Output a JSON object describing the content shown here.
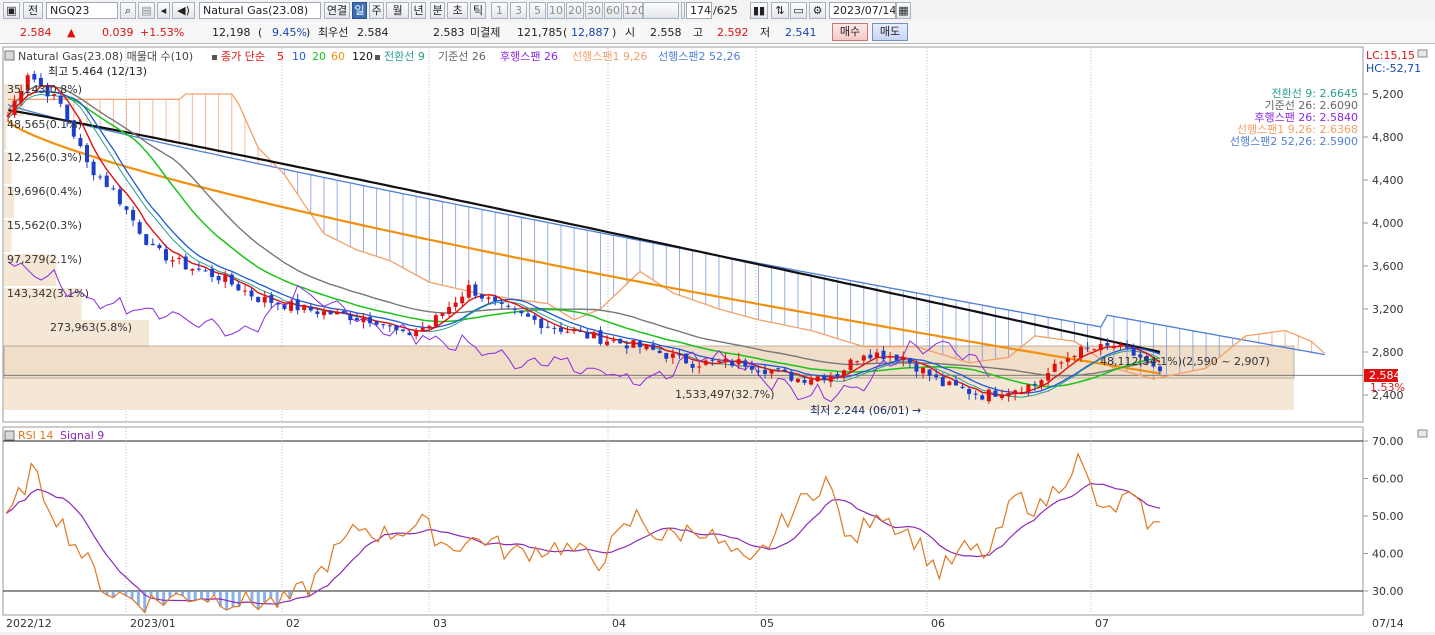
{
  "toolbar": {
    "code_label": "전",
    "code_value": "NGQ23",
    "name": "Natural Gas(23.08)",
    "link_label": "연결",
    "periods": [
      "일",
      "주",
      "월",
      "년",
      "분",
      "초",
      "틱"
    ],
    "selected_period": "일",
    "intervals": [
      "1",
      "3",
      "5",
      "10",
      "20",
      "30",
      "60",
      "120"
    ],
    "count": "174",
    "total": "/625",
    "date": "2023/07/14"
  },
  "quote": {
    "price": "2.584",
    "change_arrow": "▲",
    "change": "0.039",
    "change_pct": "+1.53%",
    "volume": "12,198",
    "volume_pct": "9.45%",
    "best_label": "최우선",
    "best_price": "2.584",
    "best_price2": "2.583",
    "open_int_label": "미결제",
    "open_int": "121,785",
    "open_int_change": "12,887",
    "open_label": "시",
    "open": "2.558",
    "high_label": "고",
    "high": "2.592",
    "low_label": "저",
    "low": "2.541",
    "buy_label": "매수",
    "sell_label": "매도"
  },
  "legend": {
    "name": "Natural Gas(23.08) 매물대 수(10)",
    "ma_label": "종가 단순",
    "ma_periods": [
      "5",
      "10",
      "20",
      "60",
      "120"
    ],
    "ichimoku": [
      "전환선 9",
      "기준선 26",
      "후행스팬 26",
      "선행스팬1 9,26",
      "선행스팬2 52,26"
    ],
    "lc": "LC:15,15",
    "hc": "HC:-52,71",
    "right_labels": [
      "전환선 9: 2.6645",
      "기준선 26: 2.6090",
      "후행스팬 26: 2.5840",
      "선행스팬1 9,26: 2.6368",
      "선행스팬2 52,26: 2.5900"
    ]
  },
  "annotations": {
    "high": "최고 5.464 (12/13)",
    "low": "최저 2.244 (06/01)",
    "current_price": "2.584",
    "current_pct": "1.53%",
    "big_profile": "1,533,497(32.7%)",
    "top_profile": "48,112(54.1%)(2,590 ~ 2,907)"
  },
  "volume_profile": [
    "35,143(0.8%)",
    "48,565(0.1%)",
    "12,256(0.3%)",
    "19,696(0.4%)",
    "15,562(0.3%)",
    "97,279(2.1%)",
    "143,342(3.1%)",
    "273,963(5.8%)"
  ],
  "price_axis": [
    "5,200",
    "4,800",
    "4,400",
    "4,000",
    "3,600",
    "3,200",
    "2,800",
    "2,400"
  ],
  "rsi": {
    "title": "RSI 14",
    "signal": "Signal 9",
    "axis": [
      "70.00",
      "60.00",
      "50.00",
      "40.00",
      "30.00"
    ]
  },
  "date_axis": [
    "2022/12",
    "2023/01",
    "02",
    "03",
    "04",
    "05",
    "06",
    "07",
    "07/14"
  ],
  "colors": {
    "ma5": "#e01010",
    "ma10": "#1e5ad6",
    "ma20": "#18c418",
    "ma60": "#f2900e",
    "ma120": "#111111",
    "conversion": "#2a9d8f",
    "base": "#777777",
    "lagging": "#8a2be2",
    "span1": "#f4a069",
    "span2": "#4f7ed6",
    "rsi": "#e07820",
    "signal": "#8a2bb8"
  }
}
